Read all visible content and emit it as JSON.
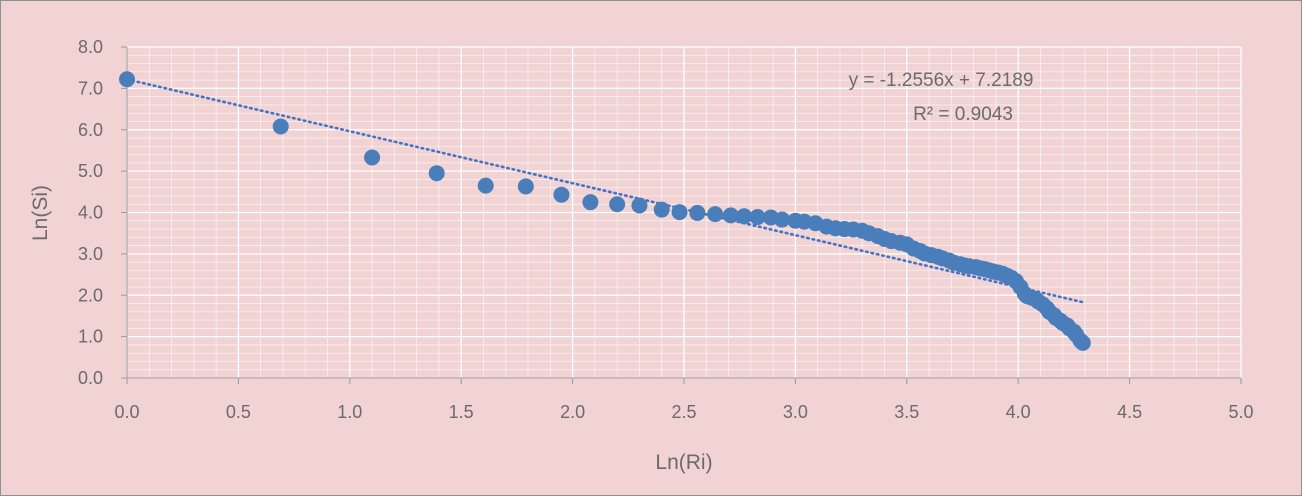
{
  "chart_data": {
    "type": "scatter",
    "xlabel": "Ln(Ri)",
    "ylabel": "Ln(Si)",
    "xlim": [
      0,
      5
    ],
    "ylim": [
      0,
      8
    ],
    "x_ticks": [
      "0.0",
      "0.5",
      "1.0",
      "1.5",
      "2.0",
      "2.5",
      "3.0",
      "3.5",
      "4.0",
      "4.5",
      "5.0"
    ],
    "y_ticks": [
      "0.0",
      "1.0",
      "2.0",
      "3.0",
      "4.0",
      "5.0",
      "6.0",
      "7.0",
      "8.0"
    ],
    "grid": true,
    "colors": {
      "background": "#f1d3d4",
      "grid": "#ffffff",
      "marker": "#4a7ebb",
      "trendline": "#4472c4",
      "text": "#6b6b6b"
    },
    "trendline": {
      "type": "linear",
      "slope": -1.2556,
      "intercept": 7.2189,
      "x_range": [
        0,
        4.29
      ],
      "equation_label": "y = -1.2556x + 7.2189",
      "r2_label": "R² = 0.9043"
    },
    "points": [
      [
        0.0,
        7.22
      ],
      [
        0.69,
        6.08
      ],
      [
        1.1,
        5.33
      ],
      [
        1.39,
        4.95
      ],
      [
        1.61,
        4.65
      ],
      [
        1.79,
        4.63
      ],
      [
        1.95,
        4.43
      ],
      [
        2.08,
        4.25
      ],
      [
        2.2,
        4.2
      ],
      [
        2.3,
        4.17
      ],
      [
        2.4,
        4.07
      ],
      [
        2.48,
        4.01
      ],
      [
        2.56,
        3.99
      ],
      [
        2.64,
        3.96
      ],
      [
        2.71,
        3.93
      ],
      [
        2.77,
        3.91
      ],
      [
        2.83,
        3.89
      ],
      [
        2.89,
        3.88
      ],
      [
        2.94,
        3.83
      ],
      [
        3.0,
        3.8
      ],
      [
        3.04,
        3.78
      ],
      [
        3.09,
        3.74
      ],
      [
        3.14,
        3.66
      ],
      [
        3.18,
        3.62
      ],
      [
        3.22,
        3.6
      ],
      [
        3.26,
        3.59
      ],
      [
        3.3,
        3.56
      ],
      [
        3.33,
        3.5
      ],
      [
        3.37,
        3.43
      ],
      [
        3.4,
        3.36
      ],
      [
        3.43,
        3.31
      ],
      [
        3.47,
        3.27
      ],
      [
        3.5,
        3.23
      ],
      [
        3.53,
        3.13
      ],
      [
        3.56,
        3.07
      ],
      [
        3.58,
        3.01
      ],
      [
        3.61,
        2.97
      ],
      [
        3.64,
        2.93
      ],
      [
        3.66,
        2.89
      ],
      [
        3.69,
        2.84
      ],
      [
        3.71,
        2.79
      ],
      [
        3.74,
        2.75
      ],
      [
        3.76,
        2.72
      ],
      [
        3.78,
        2.7
      ],
      [
        3.81,
        2.68
      ],
      [
        3.83,
        2.65
      ],
      [
        3.85,
        2.63
      ],
      [
        3.87,
        2.6
      ],
      [
        3.89,
        2.57
      ],
      [
        3.91,
        2.55
      ],
      [
        3.93,
        2.52
      ],
      [
        3.95,
        2.47
      ],
      [
        3.97,
        2.42
      ],
      [
        3.99,
        2.34
      ],
      [
        4.01,
        2.2
      ],
      [
        4.03,
        2.03
      ],
      [
        4.04,
        1.98
      ],
      [
        4.06,
        1.94
      ],
      [
        4.08,
        1.9
      ],
      [
        4.09,
        1.85
      ],
      [
        4.11,
        1.78
      ],
      [
        4.13,
        1.68
      ],
      [
        4.14,
        1.6
      ],
      [
        4.16,
        1.52
      ],
      [
        4.17,
        1.45
      ],
      [
        4.19,
        1.38
      ],
      [
        4.2,
        1.33
      ],
      [
        4.22,
        1.27
      ],
      [
        4.23,
        1.2
      ],
      [
        4.25,
        1.12
      ],
      [
        4.26,
        1.05
      ],
      [
        4.28,
        0.9
      ],
      [
        4.29,
        0.85
      ]
    ]
  }
}
